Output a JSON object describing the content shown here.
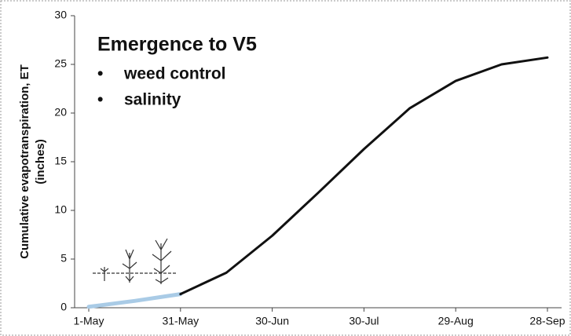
{
  "chart_data": {
    "type": "line",
    "title": "Emergence to V5",
    "bullets": [
      "weed control",
      "salinity"
    ],
    "ylabel": [
      "Cumulative evapotranspiration, ET",
      "(inches)"
    ],
    "categories": [
      "1-May",
      null,
      "31-May",
      null,
      "30-Jun",
      null,
      "30-Jul",
      null,
      "29-Aug",
      null,
      "28-Sep"
    ],
    "series": [
      {
        "color": "#a9cbe6",
        "values": [
          0.1,
          0.7,
          1.4,
          null,
          null,
          null,
          null,
          null,
          null,
          null,
          null
        ]
      },
      {
        "color": "#111111",
        "values": [
          null,
          null,
          1.4,
          3.6,
          7.4,
          11.8,
          16.3,
          20.5,
          23.3,
          25.0,
          25.7
        ]
      }
    ],
    "ylim": [
      0,
      30
    ],
    "yticks": [
      0,
      5,
      10,
      15,
      20,
      25,
      30
    ],
    "grid": false
  }
}
